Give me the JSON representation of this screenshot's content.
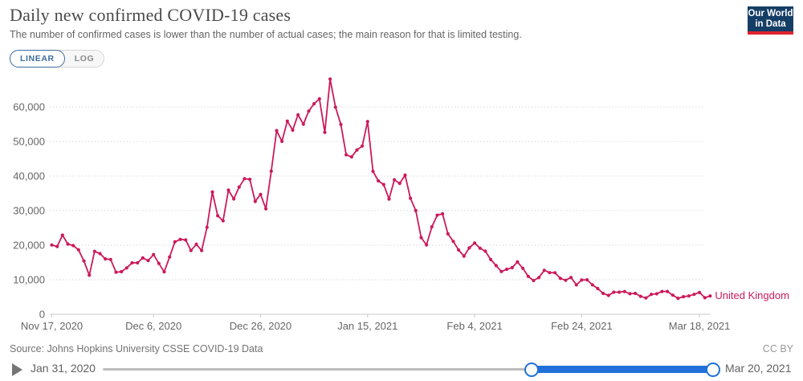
{
  "header": {
    "title": "Daily new confirmed COVID-19 cases",
    "subtitle": "The number of confirmed cases is lower than the number of actual cases; the main reason for that is limited testing.",
    "logo": {
      "line1": "Our World",
      "line2": "in Data",
      "bg_color": "#153e66",
      "stripe_color": "#e0242e"
    }
  },
  "toolbar": {
    "linear_label": "LINEAR",
    "log_label": "LOG",
    "active": "LINEAR",
    "active_color": "#3d6d9e"
  },
  "chart_data": {
    "type": "line",
    "title": "Daily new confirmed COVID-19 cases",
    "xlabel": "",
    "ylabel": "",
    "ylim": [
      0,
      68053
    ],
    "grid": "dashed-horizontal",
    "legend_position": "end-of-line",
    "y_ticks": [
      0,
      10000,
      20000,
      30000,
      40000,
      50000,
      60000
    ],
    "y_tick_labels": [
      "0",
      "10,000",
      "20,000",
      "30,000",
      "40,000",
      "50,000",
      "60,000"
    ],
    "x_ticks": [
      "2020-11-17",
      "2020-12-06",
      "2020-12-26",
      "2021-01-15",
      "2021-02-04",
      "2021-02-24",
      "2021-03-18"
    ],
    "x_tick_labels": [
      "Nov 17, 2020",
      "Dec 6, 2020",
      "Dec 26, 2020",
      "Jan 15, 2021",
      "Feb 4, 2021",
      "Feb 24, 2021",
      "Mar 18, 2021"
    ],
    "series": [
      {
        "name": "United Kingdom",
        "color": "#cb1a5c",
        "start_date": "2020-11-17",
        "end_date": "2021-03-20",
        "values": [
          20051,
          19609,
          22915,
          20318,
          19875,
          18662,
          15450,
          11299,
          18213,
          17555,
          16022,
          15871,
          12155,
          12330,
          13430,
          14879,
          14878,
          16298,
          15539,
          17271,
          14718,
          12282,
          16578,
          20964,
          21672,
          21502,
          18447,
          20263,
          18450,
          25161,
          35383,
          28507,
          27052,
          35928,
          33364,
          36804,
          39237,
          39036,
          32648,
          34693,
          30501,
          41385,
          53135,
          50023,
          55892,
          53285,
          57725,
          54990,
          58784,
          60916,
          62322,
          52618,
          68053,
          59937,
          54940,
          46169,
          45533,
          47525,
          48682,
          55761,
          41346,
          38598,
          37535,
          33355,
          38905,
          37892,
          40261,
          33552,
          30004,
          22195,
          20089,
          25308,
          28680,
          29079,
          23275,
          21088,
          18607,
          16840,
          19202,
          20634,
          19114,
          18262,
          15845,
          14104,
          12364,
          13013,
          13494,
          15144,
          13308,
          10972,
          9765,
          10625,
          12718,
          12057,
          12027,
          10406,
          9834,
          10641,
          8523,
          9938,
          9985,
          8523,
          7434,
          6035,
          5455,
          6391,
          6385,
          6573,
          5947,
          6040,
          5177,
          4712,
          5766,
          5926,
          6609,
          6609,
          5534,
          4618,
          5089,
          5294,
          5758,
          6303,
          4802,
          5312
        ]
      }
    ]
  },
  "footer": {
    "source": "Source: Johns Hopkins University CSSE COVID-19 Data",
    "license": "CC BY"
  },
  "timeline": {
    "start_label": "Jan 31, 2020",
    "end_label": "Mar 20, 2021",
    "full_range": [
      "2020-01-31",
      "2021-03-20"
    ],
    "selected_range": [
      "2020-11-17",
      "2021-03-20"
    ],
    "accent": "#2171d9"
  }
}
